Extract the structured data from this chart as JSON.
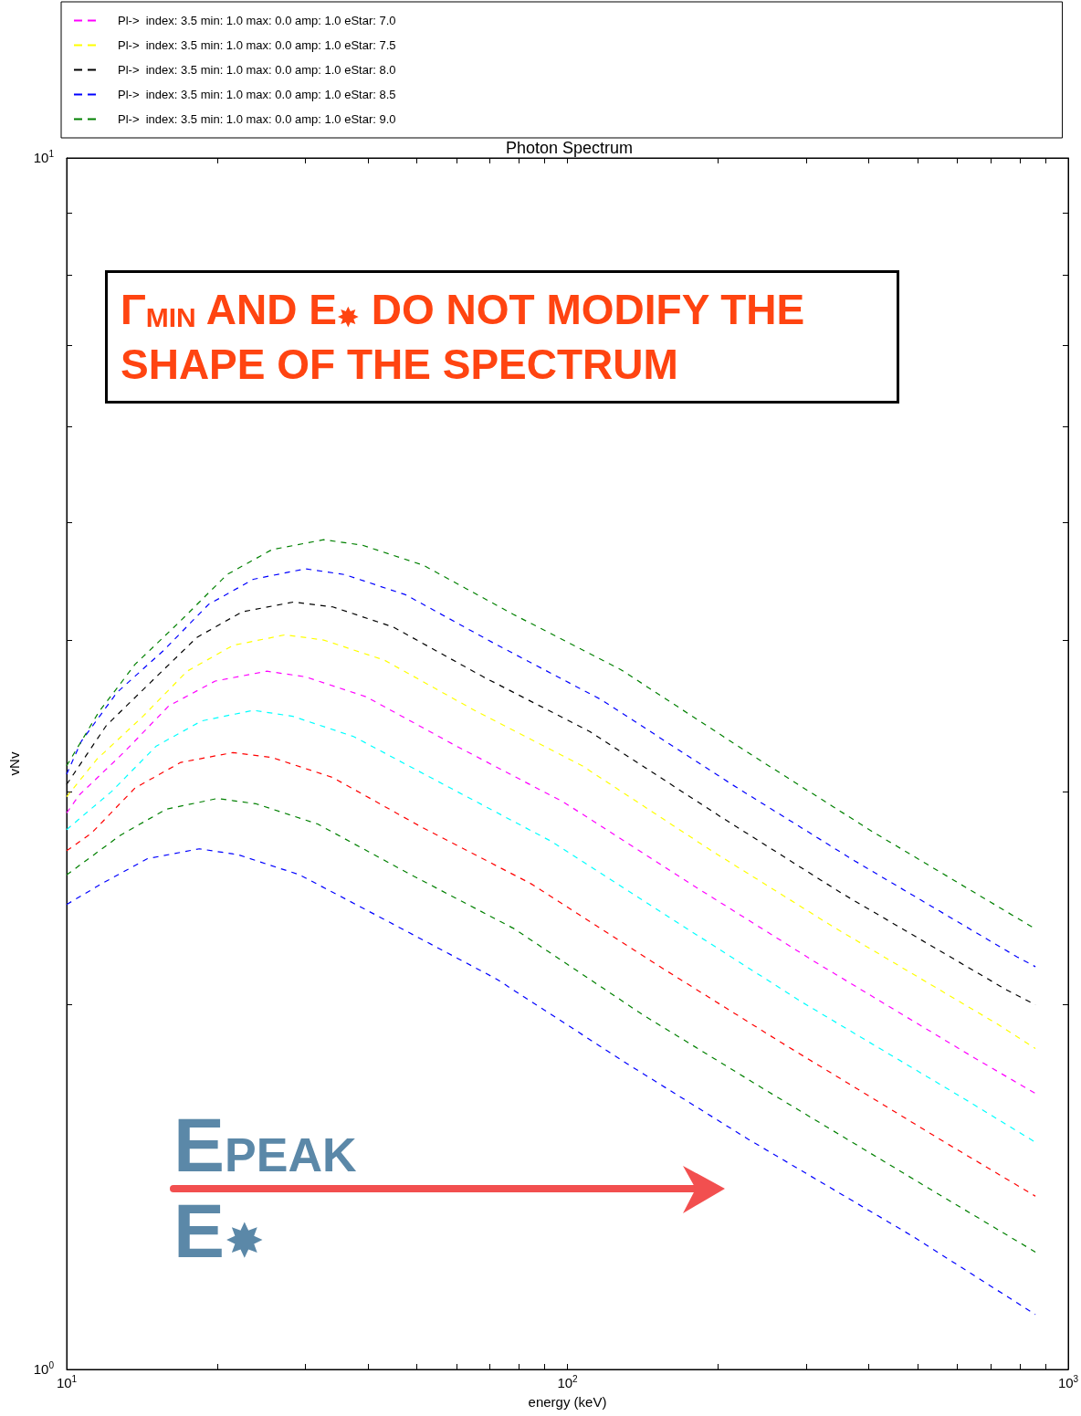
{
  "chart_data": {
    "type": "line",
    "title": "Photon Spectrum",
    "xlabel": "energy (keV)",
    "ylabel": "vNv",
    "log": "xy",
    "line_style": "dashed",
    "legend": "top",
    "xlim": [
      10,
      1000
    ],
    "xticks": [
      {
        "value": 10,
        "label": "10$^{1}$"
      },
      {
        "value": 20,
        "label": null
      },
      {
        "value": 30,
        "label": null
      },
      {
        "value": 40,
        "label": null
      },
      {
        "value": 50,
        "label": null
      },
      {
        "value": 60,
        "label": null
      },
      {
        "value": 70,
        "label": null
      },
      {
        "value": 80,
        "label": null
      },
      {
        "value": 90,
        "label": null
      },
      {
        "value": 100,
        "label": "10$^{2}$"
      },
      {
        "value": 200,
        "label": null
      },
      {
        "value": 300,
        "label": null
      },
      {
        "value": 400,
        "label": null
      },
      {
        "value": 500,
        "label": null
      },
      {
        "value": 600,
        "label": null
      },
      {
        "value": 700,
        "label": null
      },
      {
        "value": 800,
        "label": null
      },
      {
        "value": 900,
        "label": null
      },
      {
        "value": 1000,
        "label": "10$^{3}$"
      }
    ],
    "ylim": [
      1,
      10
    ],
    "yticks": [
      {
        "value": 1,
        "label": "10$^{0}$"
      },
      {
        "value": 2,
        "label": null
      },
      {
        "value": 3,
        "label": null
      },
      {
        "value": 4,
        "label": null
      },
      {
        "value": 5,
        "label": null
      },
      {
        "value": 6,
        "label": null
      },
      {
        "value": 7,
        "label": null
      },
      {
        "value": 8,
        "label": null
      },
      {
        "value": 9,
        "label": null
      },
      {
        "value": 10,
        "label": "10$^{1}$"
      }
    ],
    "annotations": [
      "Γ$_{MIN}$ AND E$_{✸}$ DO NOT MODIFY THE SHAPE OF THE SPECTRUM",
      "E$_{PEAK}$",
      "E$_{✸}$"
    ],
    "series": [
      {
        "color": "#0000ff",
        "x": [
          10,
          11.8,
          14.5,
          18.4,
          22,
          29.2,
          44.1,
          72.2,
          131,
          229,
          486,
          860
        ],
        "values": [
          2.42,
          2.52,
          2.64,
          2.69,
          2.66,
          2.56,
          2.34,
          2.1,
          1.79,
          1.55,
          1.29,
          1.11
        ]
      },
      {
        "color": "#008000",
        "x": [
          10,
          12.8,
          15.8,
          20,
          23.9,
          31.7,
          47.9,
          78.4,
          142,
          249,
          528,
          860
        ],
        "values": [
          2.56,
          2.76,
          2.9,
          2.96,
          2.93,
          2.82,
          2.57,
          2.31,
          1.96,
          1.7,
          1.41,
          1.25
        ]
      },
      {
        "color": "#ff0000",
        "x": [
          10,
          11.2,
          13.7,
          16.9,
          21.5,
          25.7,
          34,
          51.4,
          84.2,
          153,
          268,
          567,
          860
        ],
        "values": [
          2.68,
          2.77,
          3.02,
          3.17,
          3.23,
          3.2,
          3.08,
          2.8,
          2.52,
          2.15,
          1.86,
          1.54,
          1.39
        ]
      },
      {
        "color": "#00ffff",
        "x": [
          10,
          12.3,
          15.1,
          18.6,
          23.6,
          28.3,
          37.4,
          56.6,
          92.6,
          168,
          294,
          624,
          860
        ],
        "values": [
          2.79,
          3,
          3.27,
          3.43,
          3.5,
          3.46,
          3.33,
          3.04,
          2.73,
          2.33,
          2.01,
          1.67,
          1.54
        ]
      },
      {
        "name": "Pl->  index: 3.5 min: 1.0 max: 0.0 amp: 1.0 eStar: 7.0",
        "color": "#ff00ff",
        "x": [
          10,
          10.6,
          13,
          16,
          19.8,
          25.1,
          30,
          39.7,
          60,
          98.2,
          178,
          312,
          661,
          860
        ],
        "values": [
          2.88,
          2.98,
          3.23,
          3.53,
          3.7,
          3.77,
          3.73,
          3.59,
          3.27,
          2.94,
          2.51,
          2.17,
          1.8,
          1.69
        ]
      },
      {
        "name": "Pl->  index: 3.5 min: 1.0 max: 0.0 amp: 1.0 eStar: 7.5",
        "color": "#ffff00",
        "x": [
          10,
          11.5,
          14.2,
          17.4,
          21.5,
          27.3,
          32.6,
          43.1,
          65.2,
          107,
          194,
          339,
          719,
          860
        ],
        "values": [
          2.97,
          3.19,
          3.46,
          3.77,
          3.96,
          4.04,
          4,
          3.85,
          3.5,
          3.15,
          2.68,
          2.32,
          1.93,
          1.84
        ]
      },
      {
        "name": "Pl->  index: 3.5 min: 1.0 max: 0.0 amp: 1.0 eStar: 8.0",
        "color": "#000000",
        "x": [
          10,
          12,
          14.7,
          18.2,
          22.4,
          28.4,
          34,
          44.9,
          67.9,
          111,
          202,
          354,
          749,
          860
        ],
        "values": [
          3.04,
          3.4,
          3.69,
          4.02,
          4.22,
          4.3,
          4.26,
          4.1,
          3.73,
          3.36,
          2.86,
          2.47,
          2.06,
          2
        ]
      },
      {
        "name": "Pl->  index: 3.5 min: 1.0 max: 0.0 amp: 1.0 eStar: 8.5",
        "color": "#0000ff",
        "x": [
          10,
          10.7,
          12.6,
          15.6,
          19.2,
          23.6,
          30,
          35.9,
          47.5,
          71.8,
          117,
          213,
          374,
          791,
          860
        ],
        "values": [
          3.1,
          3.3,
          3.62,
          3.92,
          4.28,
          4.49,
          4.58,
          4.53,
          4.36,
          3.97,
          3.57,
          3.04,
          2.63,
          2.19,
          2.15
        ]
      },
      {
        "name": "Pl->  index: 3.5 min: 1.0 max: 0.0 amp: 1.0 eStar: 9.0",
        "color": "#008000",
        "x": [
          10,
          11.6,
          13.7,
          16.9,
          20.9,
          25.7,
          32.6,
          39,
          51.6,
          78,
          128,
          232,
          406,
          860
        ],
        "values": [
          3.15,
          3.49,
          3.82,
          4.15,
          4.53,
          4.75,
          4.84,
          4.79,
          4.61,
          4.2,
          3.78,
          3.22,
          2.78,
          2.31
        ]
      }
    ]
  }
}
